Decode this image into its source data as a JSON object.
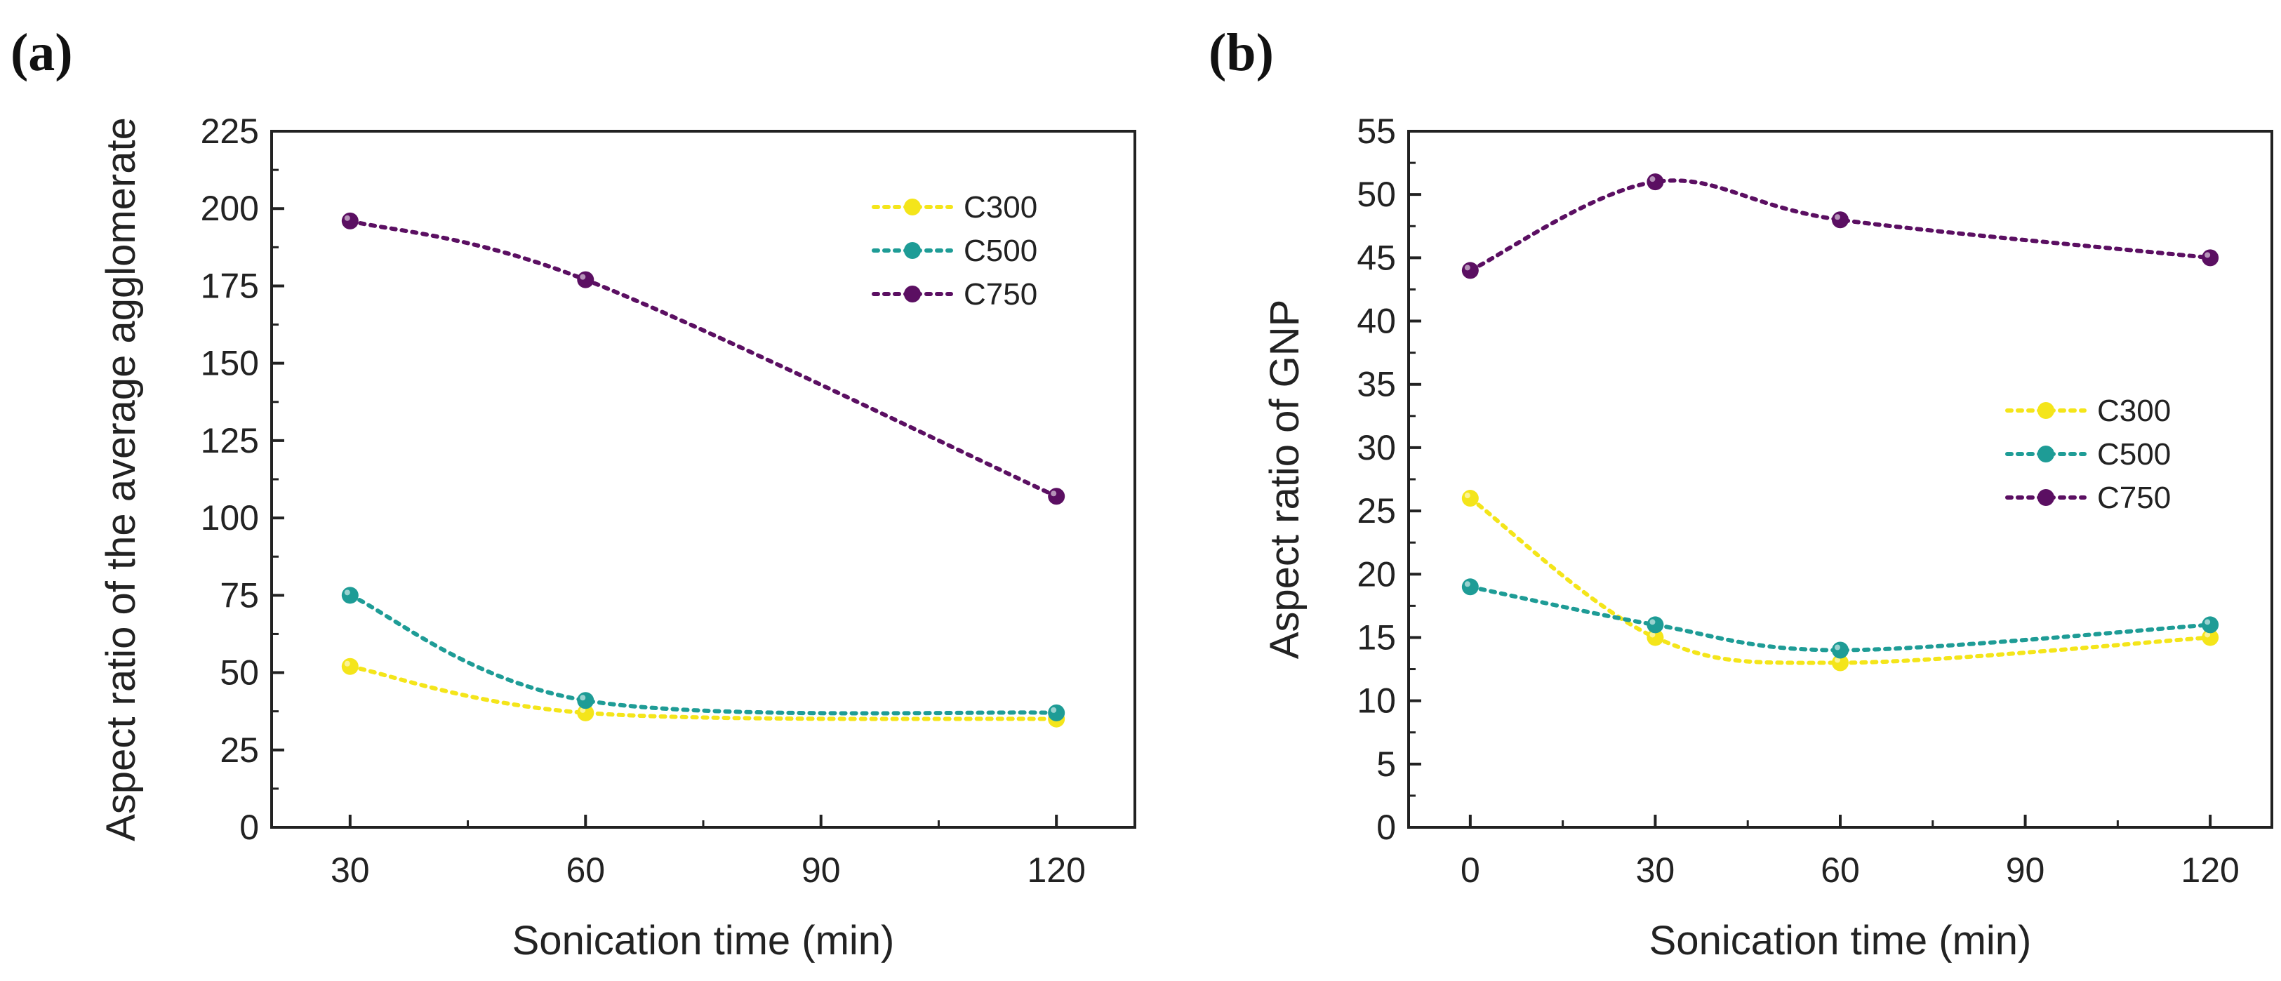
{
  "chart_data": [
    {
      "type": "line",
      "panel_label": "(a)",
      "xlabel": "Sonication time (min)",
      "ylabel": "Aspect ratio of the average agglomerate",
      "x": [
        30,
        60,
        120
      ],
      "xlim": [
        20,
        130
      ],
      "ylim": [
        0,
        225
      ],
      "xticks": [
        30,
        60,
        90,
        120
      ],
      "yticks": [
        0,
        25,
        50,
        75,
        100,
        125,
        150,
        175,
        200,
        225
      ],
      "grid": false,
      "legend_position": "top-right",
      "series": [
        {
          "name": "C300",
          "color": "#F4E51A",
          "values": [
            52,
            37,
            35
          ]
        },
        {
          "name": "C500",
          "color": "#1E9C96",
          "values": [
            75,
            41,
            37
          ]
        },
        {
          "name": "C750",
          "color": "#5B0F62",
          "values": [
            196,
            177,
            107
          ]
        }
      ]
    },
    {
      "type": "line",
      "panel_label": "(b)",
      "xlabel": "Sonication time (min)",
      "ylabel": "Aspect ratio of GNP",
      "x": [
        0,
        30,
        60,
        120
      ],
      "xlim": [
        -10,
        130
      ],
      "ylim": [
        0,
        55
      ],
      "xticks": [
        0,
        30,
        60,
        90,
        120
      ],
      "yticks": [
        0,
        5,
        10,
        15,
        20,
        25,
        30,
        35,
        40,
        45,
        50,
        55
      ],
      "grid": false,
      "legend_position": "center-right",
      "series": [
        {
          "name": "C300",
          "color": "#F4E51A",
          "values": [
            26,
            15,
            13,
            15
          ]
        },
        {
          "name": "C500",
          "color": "#1E9C96",
          "values": [
            19,
            16,
            14,
            16
          ]
        },
        {
          "name": "C750",
          "color": "#5B0F62",
          "values": [
            44,
            51,
            48,
            45
          ]
        }
      ]
    }
  ]
}
